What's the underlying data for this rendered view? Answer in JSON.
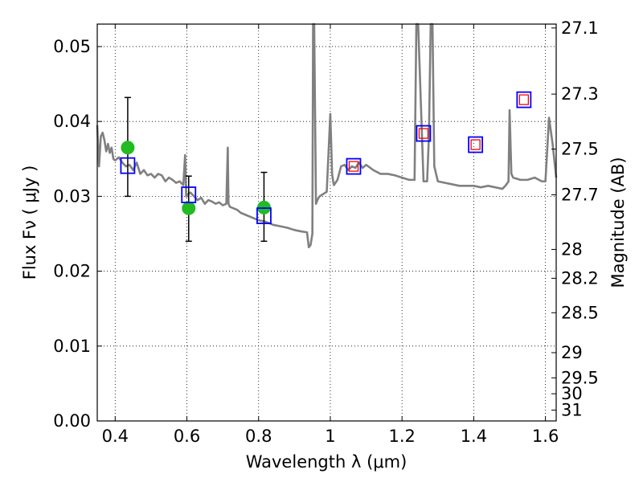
{
  "chart_data": {
    "type": "line",
    "xlabel": "Wavelength  λ (μm)",
    "ylabel": "Flux  Fν  ( μJy )",
    "ylabel_right": "Magnitude (AB)",
    "xlim": [
      0.35,
      1.63
    ],
    "ylim": [
      0.0,
      0.053
    ],
    "grid": true,
    "x_ticks": [
      0.4,
      0.6,
      0.8,
      1.0,
      1.2,
      1.4,
      1.6
    ],
    "x_tick_labels": [
      "0.4",
      "0.6",
      "0.8",
      "1",
      "1.2",
      "1.4",
      "1.6"
    ],
    "y_ticks": [
      0.0,
      0.01,
      0.02,
      0.03,
      0.04,
      0.05
    ],
    "y_tick_labels": [
      "0.00",
      "0.01",
      "0.02",
      "0.03",
      "0.04",
      "0.05"
    ],
    "right_ticks": [
      {
        "label": "27.1",
        "mag": 27.1
      },
      {
        "label": "27.3",
        "mag": 27.3
      },
      {
        "label": "27.5",
        "mag": 27.5
      },
      {
        "label": "27.7",
        "mag": 27.7
      },
      {
        "label": "28",
        "mag": 28.0
      },
      {
        "label": "28.2",
        "mag": 28.2
      },
      {
        "label": "28.5",
        "mag": 28.5
      },
      {
        "label": "29",
        "mag": 29.0
      },
      {
        "label": "29.5",
        "mag": 29.5
      },
      {
        "label": "30",
        "mag": 30.0
      },
      {
        "label": "31",
        "mag": 31.0
      }
    ],
    "colors": {
      "spectrum": "#808080",
      "observed": "#22bb22",
      "model_box": "#0000ff",
      "model_box_inner": "#ff0000",
      "error_bar": "#000000"
    },
    "series": [
      {
        "kind": "spectrum",
        "x": [
          0.35,
          0.355,
          0.36,
          0.365,
          0.37,
          0.375,
          0.38,
          0.385,
          0.39,
          0.395,
          0.4,
          0.41,
          0.42,
          0.43,
          0.44,
          0.45,
          0.46,
          0.47,
          0.48,
          0.49,
          0.5,
          0.51,
          0.52,
          0.53,
          0.54,
          0.55,
          0.56,
          0.57,
          0.58,
          0.59,
          0.595,
          0.598,
          0.6,
          0.61,
          0.62,
          0.63,
          0.64,
          0.65,
          0.66,
          0.67,
          0.68,
          0.69,
          0.7,
          0.71,
          0.714,
          0.716,
          0.72,
          0.73,
          0.74,
          0.75,
          0.76,
          0.78,
          0.8,
          0.82,
          0.84,
          0.86,
          0.88,
          0.9,
          0.92,
          0.935,
          0.94,
          0.945,
          0.95,
          0.952,
          0.955,
          0.96,
          0.965,
          0.97,
          0.98,
          0.99,
          1.0,
          1.005,
          1.008,
          1.01,
          1.02,
          1.03,
          1.04,
          1.05,
          1.06,
          1.07,
          1.08,
          1.09,
          1.1,
          1.12,
          1.14,
          1.16,
          1.18,
          1.2,
          1.22,
          1.235,
          1.24,
          1.245,
          1.26,
          1.27,
          1.275,
          1.28,
          1.285,
          1.29,
          1.3,
          1.32,
          1.34,
          1.36,
          1.38,
          1.4,
          1.42,
          1.44,
          1.46,
          1.48,
          1.49,
          1.497,
          1.5,
          1.505,
          1.51,
          1.53,
          1.55,
          1.57,
          1.59,
          1.6,
          1.61,
          1.62,
          1.63
        ],
        "y": [
          0.0395,
          0.034,
          0.038,
          0.0385,
          0.0375,
          0.036,
          0.037,
          0.0358,
          0.0365,
          0.035,
          0.0348,
          0.0352,
          0.0345,
          0.034,
          0.0342,
          0.0335,
          0.0345,
          0.033,
          0.0335,
          0.0328,
          0.033,
          0.0325,
          0.033,
          0.0328,
          0.032,
          0.0325,
          0.0322,
          0.0318,
          0.032,
          0.0315,
          0.0355,
          0.03,
          0.0302,
          0.0305,
          0.03,
          0.0295,
          0.0298,
          0.029,
          0.0295,
          0.0293,
          0.029,
          0.0292,
          0.0288,
          0.029,
          0.0365,
          0.029,
          0.0286,
          0.0284,
          0.0282,
          0.0278,
          0.0276,
          0.0272,
          0.0268,
          0.0266,
          0.0262,
          0.026,
          0.0258,
          0.0255,
          0.0253,
          0.0252,
          0.0232,
          0.0235,
          0.025,
          0.053,
          0.053,
          0.029,
          0.0296,
          0.03,
          0.0303,
          0.0306,
          0.041,
          0.033,
          0.032,
          0.0315,
          0.0322,
          0.034,
          0.0342,
          0.0335,
          0.034,
          0.0338,
          0.0345,
          0.0338,
          0.0342,
          0.0335,
          0.033,
          0.033,
          0.0328,
          0.0325,
          0.0322,
          0.0322,
          0.053,
          0.053,
          0.032,
          0.032,
          0.038,
          0.053,
          0.053,
          0.034,
          0.032,
          0.0318,
          0.0316,
          0.0314,
          0.0314,
          0.0314,
          0.0312,
          0.0314,
          0.0312,
          0.031,
          0.0315,
          0.032,
          0.0415,
          0.033,
          0.0325,
          0.0322,
          0.0322,
          0.0325,
          0.032,
          0.032,
          0.0405,
          0.037,
          0.0325
        ]
      },
      {
        "kind": "observed",
        "points": [
          {
            "x": 0.435,
            "y": 0.0365,
            "ylo": 0.03,
            "yhi": 0.0432
          },
          {
            "x": 0.605,
            "y": 0.0284,
            "ylo": 0.024,
            "yhi": 0.0327
          },
          {
            "x": 0.815,
            "y": 0.0285,
            "ylo": 0.024,
            "yhi": 0.0332
          }
        ]
      },
      {
        "kind": "model",
        "points": [
          {
            "x": 0.435,
            "y": 0.0341
          },
          {
            "x": 0.605,
            "y": 0.0302
          },
          {
            "x": 0.815,
            "y": 0.0274
          },
          {
            "x": 1.065,
            "y": 0.034
          },
          {
            "x": 1.26,
            "y": 0.0384
          },
          {
            "x": 1.405,
            "y": 0.0369
          },
          {
            "x": 1.54,
            "y": 0.0429
          }
        ],
        "inner_points": [
          {
            "x": 1.065,
            "y": 0.034
          },
          {
            "x": 1.26,
            "y": 0.0384
          },
          {
            "x": 1.405,
            "y": 0.0369
          },
          {
            "x": 1.54,
            "y": 0.0429
          }
        ]
      }
    ]
  }
}
